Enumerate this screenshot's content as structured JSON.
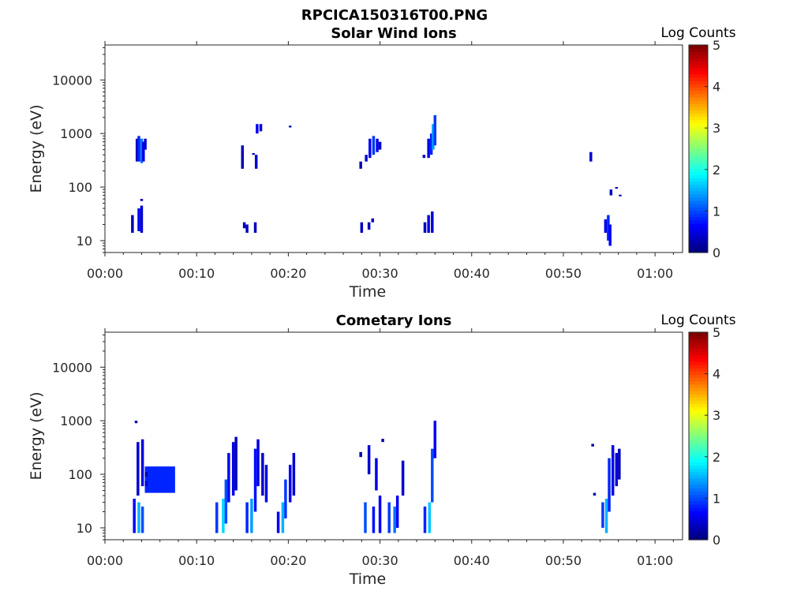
{
  "figure_title": "RPCICA150316T00.PNG",
  "chart_data": [
    {
      "type": "heatmap",
      "title": "Solar Wind Ions",
      "xlabel": "Time",
      "ylabel": "Energy (eV)",
      "x_ticks": [
        "00:00",
        "00:10",
        "00:20",
        "00:30",
        "00:40",
        "00:50",
        "01:00"
      ],
      "y_ticks": [
        "10",
        "100",
        "1000",
        "10000"
      ],
      "y_scale": "log",
      "colorbar": {
        "label": "Log Counts",
        "ticks": [
          "0",
          "1",
          "2",
          "3",
          "4",
          "5"
        ],
        "range": [
          0,
          5
        ],
        "colormap": "jet"
      },
      "cells": [
        [
          3.5,
          300,
          800,
          0.3
        ],
        [
          3.7,
          300,
          900,
          0.8
        ],
        [
          4.0,
          280,
          800,
          1.2
        ],
        [
          4.2,
          300,
          700,
          0.5
        ],
        [
          4.4,
          500,
          800,
          0.4
        ],
        [
          3.0,
          14,
          30,
          0.3
        ],
        [
          3.7,
          15,
          40,
          0.6
        ],
        [
          4.0,
          14,
          45,
          0.4
        ],
        [
          4.0,
          55,
          60,
          0.3
        ],
        [
          15.0,
          220,
          600,
          0.3
        ],
        [
          16.2,
          400,
          430,
          0.3
        ],
        [
          16.5,
          220,
          400,
          0.4
        ],
        [
          16.6,
          1000,
          1500,
          0.6
        ],
        [
          17.0,
          1100,
          1500,
          0.4
        ],
        [
          15.2,
          17,
          22,
          0.3
        ],
        [
          15.5,
          14,
          20,
          0.3
        ],
        [
          16.4,
          14,
          22,
          0.3
        ],
        [
          20.2,
          1300,
          1400,
          0.3
        ],
        [
          27.9,
          220,
          300,
          0.3
        ],
        [
          28.5,
          300,
          400,
          0.4
        ],
        [
          28.9,
          350,
          800,
          0.6
        ],
        [
          29.3,
          400,
          900,
          0.9
        ],
        [
          29.7,
          450,
          800,
          0.5
        ],
        [
          30.0,
          500,
          700,
          0.4
        ],
        [
          28.0,
          14,
          22,
          0.3
        ],
        [
          28.8,
          16,
          22,
          0.3
        ],
        [
          29.2,
          22,
          26,
          0.3
        ],
        [
          34.8,
          350,
          400,
          0.3
        ],
        [
          35.3,
          350,
          800,
          0.5
        ],
        [
          35.6,
          400,
          1000,
          0.8
        ],
        [
          35.8,
          500,
          1500,
          1.4
        ],
        [
          36.0,
          600,
          2200,
          0.9
        ],
        [
          34.9,
          14,
          22,
          0.3
        ],
        [
          35.3,
          14,
          30,
          0.5
        ],
        [
          35.7,
          14,
          35,
          0.4
        ],
        [
          53.0,
          300,
          450,
          0.4
        ],
        [
          54.6,
          14,
          25,
          0.5
        ],
        [
          54.9,
          10,
          30,
          0.8
        ],
        [
          55.1,
          8,
          20,
          0.6
        ],
        [
          55.2,
          70,
          90,
          0.3
        ],
        [
          55.8,
          95,
          100,
          0.3
        ],
        [
          56.2,
          68,
          72,
          0.3
        ]
      ]
    },
    {
      "type": "heatmap",
      "title": "Cometary Ions",
      "xlabel": "Time",
      "ylabel": "Energy (eV)",
      "x_ticks": [
        "00:00",
        "00:10",
        "00:20",
        "00:30",
        "00:40",
        "00:50",
        "01:00"
      ],
      "y_ticks": [
        "10",
        "100",
        "1000",
        "10000"
      ],
      "y_scale": "log",
      "colorbar": {
        "label": "Log Counts",
        "ticks": [
          "0",
          "1",
          "2",
          "3",
          "4",
          "5"
        ],
        "range": [
          0,
          5
        ],
        "colormap": "jet"
      },
      "cells": [
        [
          3.4,
          900,
          1000,
          0.2
        ],
        [
          3.6,
          40,
          400,
          0.4
        ],
        [
          4.1,
          60,
          450,
          0.5
        ],
        [
          3.2,
          8,
          35,
          0.6
        ],
        [
          3.7,
          8,
          30,
          1.5
        ],
        [
          4.1,
          8,
          25,
          1.0
        ],
        [
          4.5,
          45,
          140,
          0.8
        ],
        [
          4.5,
          90,
          110,
          0.2
        ],
        [
          4.5,
          60,
          75,
          0.4
        ],
        [
          12.2,
          8,
          30,
          0.9
        ],
        [
          12.9,
          8,
          35,
          1.7
        ],
        [
          13.2,
          12,
          80,
          1.0
        ],
        [
          13.5,
          30,
          250,
          0.6
        ],
        [
          14.0,
          40,
          400,
          0.5
        ],
        [
          14.3,
          50,
          500,
          0.3
        ],
        [
          15.5,
          8,
          30,
          0.8
        ],
        [
          16.0,
          8,
          35,
          1.4
        ],
        [
          16.4,
          20,
          300,
          0.7
        ],
        [
          16.7,
          60,
          450,
          0.5
        ],
        [
          17.2,
          40,
          250,
          0.4
        ],
        [
          17.6,
          30,
          150,
          0.5
        ],
        [
          18.9,
          8,
          20,
          0.6
        ],
        [
          19.4,
          8,
          30,
          1.5
        ],
        [
          19.7,
          15,
          80,
          0.9
        ],
        [
          20.2,
          30,
          150,
          0.6
        ],
        [
          20.6,
          40,
          250,
          0.4
        ],
        [
          27.9,
          210,
          260,
          0.2
        ],
        [
          28.4,
          8,
          30,
          1.0
        ],
        [
          28.8,
          100,
          350,
          0.4
        ],
        [
          29.3,
          8,
          25,
          0.7
        ],
        [
          29.6,
          50,
          200,
          0.5
        ],
        [
          30.0,
          8,
          40,
          0.6
        ],
        [
          30.3,
          400,
          460,
          0.2
        ],
        [
          31.0,
          8,
          30,
          0.9
        ],
        [
          31.6,
          8,
          25,
          1.2
        ],
        [
          31.9,
          10,
          40,
          0.6
        ],
        [
          32.5,
          40,
          180,
          0.4
        ],
        [
          34.9,
          8,
          25,
          0.8
        ],
        [
          35.4,
          8,
          30,
          1.6
        ],
        [
          35.7,
          30,
          300,
          1.0
        ],
        [
          36.0,
          200,
          1000,
          0.6
        ],
        [
          53.2,
          330,
          370,
          0.2
        ],
        [
          53.4,
          40,
          45,
          0.2
        ],
        [
          54.3,
          10,
          30,
          0.9
        ],
        [
          54.7,
          8,
          35,
          1.5
        ],
        [
          55.0,
          20,
          200,
          0.8
        ],
        [
          55.4,
          40,
          350,
          0.5
        ],
        [
          55.8,
          60,
          250,
          0.4
        ],
        [
          56.1,
          80,
          300,
          0.3
        ]
      ]
    }
  ]
}
